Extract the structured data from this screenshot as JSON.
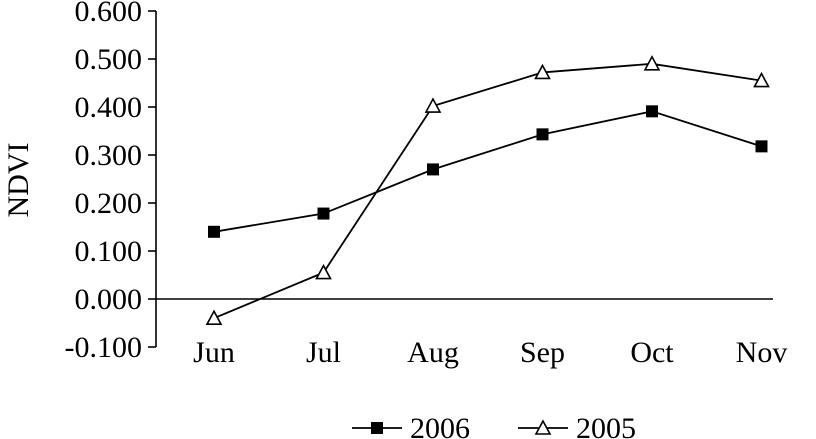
{
  "chart_data": {
    "type": "line",
    "categories": [
      "Jun",
      "Jul",
      "Aug",
      "Sep",
      "Oct",
      "Nov"
    ],
    "series": [
      {
        "name": "2006",
        "marker": "square-filled",
        "values": [
          0.14,
          0.178,
          0.27,
          0.343,
          0.391,
          0.318
        ]
      },
      {
        "name": "2005",
        "marker": "triangle-open",
        "values": [
          -0.04,
          0.055,
          0.402,
          0.472,
          0.49,
          0.455
        ]
      }
    ],
    "title": "",
    "xlabel": "",
    "ylabel": "NDVI",
    "ylim": [
      -0.1,
      0.6
    ],
    "yticks": [
      {
        "value": -0.1,
        "label": "-0.100"
      },
      {
        "value": 0.0,
        "label": "0.000"
      },
      {
        "value": 0.1,
        "label": "0.100"
      },
      {
        "value": 0.2,
        "label": "0.200"
      },
      {
        "value": 0.3,
        "label": "0.300"
      },
      {
        "value": 0.4,
        "label": "0.400"
      },
      {
        "value": 0.5,
        "label": "0.500"
      },
      {
        "value": 0.6,
        "label": "0.600"
      }
    ],
    "grid": false,
    "legend_position": "bottom",
    "colors": {
      "line": "#000000",
      "background": "#ffffff"
    }
  }
}
